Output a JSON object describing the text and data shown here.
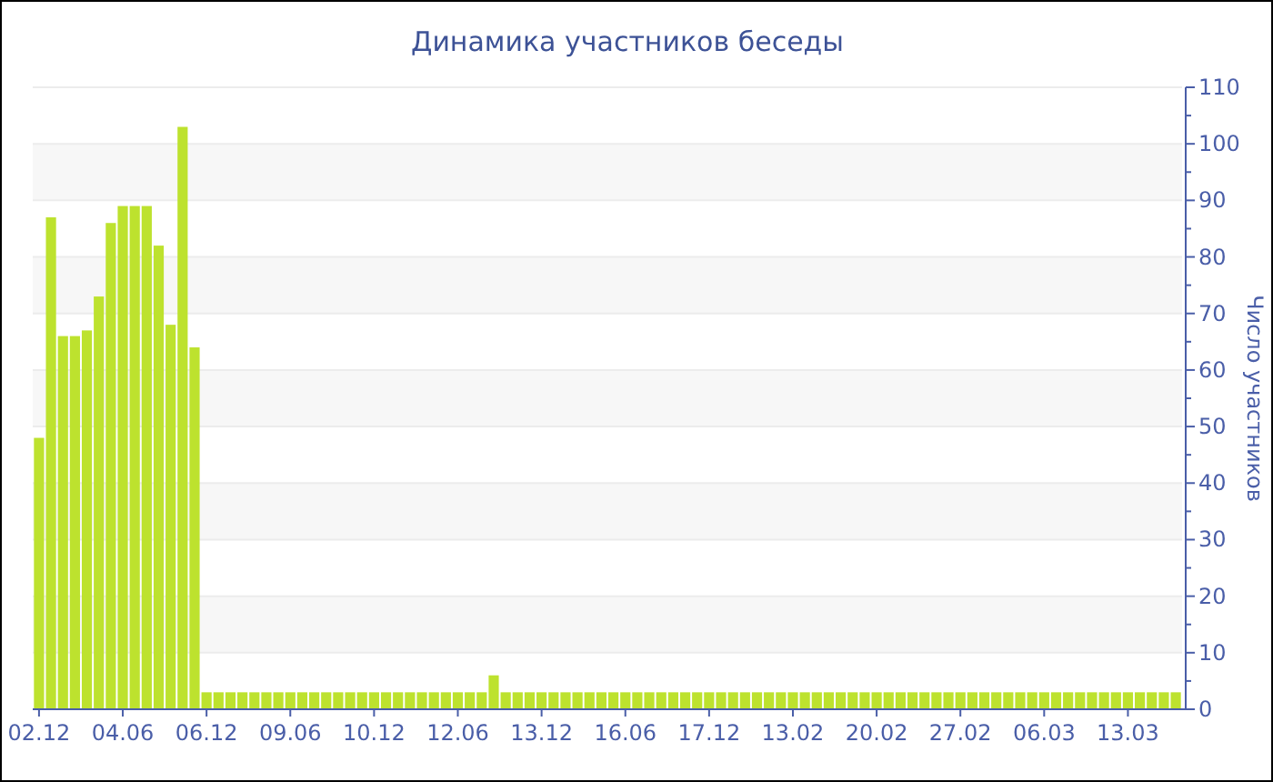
{
  "chart_data": {
    "type": "bar",
    "title": "Динамика участников беседы",
    "y2label": "Число участников",
    "categories": [
      "02.12",
      null,
      null,
      null,
      null,
      null,
      null,
      "04.06",
      null,
      null,
      null,
      null,
      null,
      null,
      "06.12",
      null,
      null,
      null,
      null,
      null,
      null,
      "09.06",
      null,
      null,
      null,
      null,
      null,
      null,
      "10.12",
      null,
      null,
      null,
      null,
      null,
      null,
      "12.06",
      null,
      null,
      null,
      null,
      null,
      null,
      "13.12",
      null,
      null,
      null,
      null,
      null,
      null,
      "16.06",
      null,
      null,
      null,
      null,
      null,
      null,
      "17.12",
      null,
      null,
      null,
      null,
      null,
      null,
      "13.02",
      null,
      null,
      null,
      null,
      null,
      null,
      "20.02",
      null,
      null,
      null,
      null,
      null,
      null,
      "27.02",
      null,
      null,
      null,
      null,
      null,
      null,
      "06.03",
      null,
      null,
      null,
      null,
      null,
      null,
      "13.03",
      null,
      null,
      null,
      null
    ],
    "series": [
      {
        "axis": "y2",
        "color": "#bde22e",
        "values": [
          48,
          87,
          66,
          66,
          67,
          73,
          86,
          89,
          89,
          89,
          82,
          68,
          103,
          64,
          3,
          3,
          3,
          3,
          3,
          3,
          3,
          3,
          3,
          3,
          3,
          3,
          3,
          3,
          3,
          3,
          3,
          3,
          3,
          3,
          3,
          3,
          3,
          3,
          6,
          3,
          3,
          3,
          3,
          3,
          3,
          3,
          3,
          3,
          3,
          3,
          3,
          3,
          3,
          3,
          3,
          3,
          3,
          3,
          3,
          3,
          3,
          3,
          3,
          3,
          3,
          3,
          3,
          3,
          3,
          3,
          3,
          3,
          3,
          3,
          3,
          3,
          3,
          3,
          3,
          3,
          3,
          3,
          3,
          3,
          3,
          3,
          3,
          3,
          3,
          3,
          3,
          3,
          3,
          3,
          3,
          3
        ]
      }
    ],
    "y2lim": [
      0,
      110
    ],
    "y2ticks": [
      0,
      {
        "value": 5,
        "label": null
      },
      10,
      {
        "value": 15,
        "label": null
      },
      20,
      {
        "value": 25,
        "label": null
      },
      30,
      {
        "value": 35,
        "label": null
      },
      40,
      {
        "value": 45,
        "label": null
      },
      50,
      {
        "value": 55,
        "label": null
      },
      60,
      {
        "value": 65,
        "label": null
      },
      70,
      {
        "value": 75,
        "label": null
      },
      80,
      {
        "value": 85,
        "label": null
      },
      90,
      {
        "value": 95,
        "label": null
      },
      100,
      {
        "value": 105,
        "label": null
      },
      110
    ],
    "grid": true
  }
}
